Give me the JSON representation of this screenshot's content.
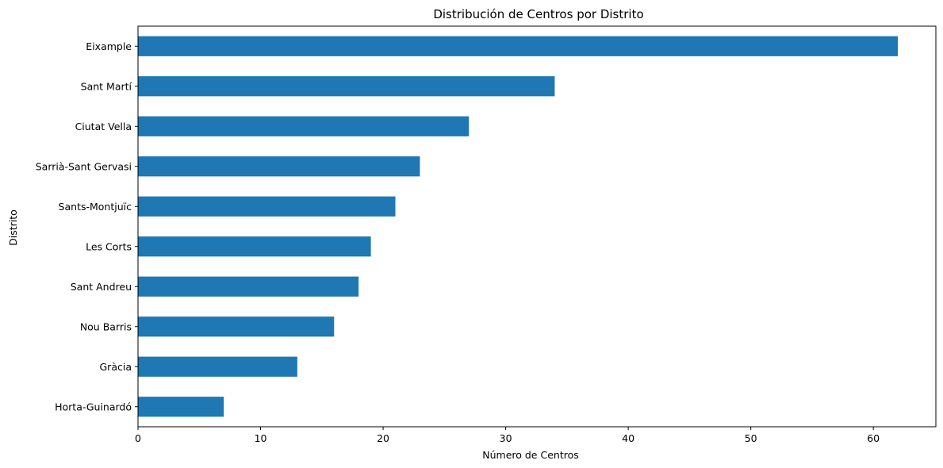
{
  "chart_data": {
    "type": "bar",
    "orientation": "horizontal",
    "title": "Distribución de Centros por Distrito",
    "xlabel": "Número de Centros",
    "ylabel": "Distrito",
    "categories": [
      "Eixample",
      "Sant Martí",
      "Ciutat Vella",
      "Sarrià-Sant Gervasi",
      "Sants-Montjuïc",
      "Les Corts",
      "Sant Andreu",
      "Nou Barris",
      "Gràcia",
      "Horta-Guinardó"
    ],
    "values": [
      62,
      34,
      27,
      23,
      21,
      19,
      18,
      16,
      13,
      7
    ],
    "xlim": [
      0,
      65.1
    ],
    "xticks": [
      "0",
      "10",
      "20",
      "30",
      "40",
      "50",
      "60"
    ],
    "grid": false,
    "bar_color": "#1f77b4"
  }
}
